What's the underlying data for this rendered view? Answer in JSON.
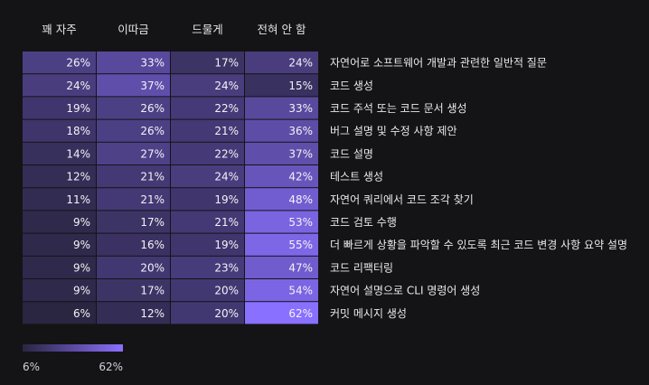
{
  "chart_data": {
    "type": "heatmap",
    "columns": [
      "꽤 자주",
      "이따금",
      "드물게",
      "전혀 안 함"
    ],
    "rows": [
      "자연어로 소프트웨어 개발과 관련한 일반적 질문",
      "코드 생성",
      "코드 주석 또는 코드 문서 생성",
      "버그 설명 및 수정 사항 제안",
      "코드 설명",
      "테스트 생성",
      "자연어 쿼리에서 코드 조각 찾기",
      "코드 검토 수행",
      "더 빠르게 상황을 파악할 수 있도록 최근 코드 변경 사항 요약 설명",
      "코드 리팩터링",
      "자연어 설명으로 CLI 명령어 생성",
      "커밋 메시지 생성"
    ],
    "values": [
      [
        26,
        33,
        17,
        24
      ],
      [
        24,
        37,
        24,
        15
      ],
      [
        19,
        26,
        22,
        33
      ],
      [
        18,
        26,
        21,
        36
      ],
      [
        14,
        27,
        22,
        37
      ],
      [
        12,
        21,
        24,
        42
      ],
      [
        11,
        21,
        19,
        48
      ],
      [
        9,
        17,
        21,
        53
      ],
      [
        9,
        16,
        19,
        55
      ],
      [
        9,
        20,
        23,
        47
      ],
      [
        9,
        17,
        20,
        54
      ],
      [
        6,
        12,
        20,
        62
      ]
    ],
    "unit": "%",
    "legend": {
      "min_label": "6%",
      "max_label": "62%",
      "min": 6,
      "max": 62,
      "color_min": "#2a2541",
      "color_max": "#8a70ff"
    }
  }
}
